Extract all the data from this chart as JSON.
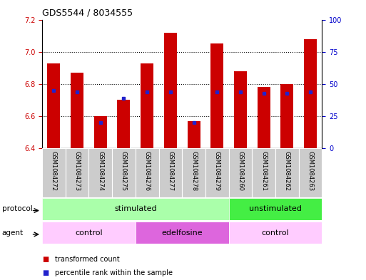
{
  "title": "GDS5544 / 8034555",
  "samples": [
    "GSM1084272",
    "GSM1084273",
    "GSM1084274",
    "GSM1084275",
    "GSM1084276",
    "GSM1084277",
    "GSM1084278",
    "GSM1084279",
    "GSM1084260",
    "GSM1084261",
    "GSM1084262",
    "GSM1084263"
  ],
  "transformed_count": [
    6.93,
    6.87,
    6.6,
    6.7,
    6.93,
    7.12,
    6.57,
    7.05,
    6.88,
    6.78,
    6.8,
    7.08
  ],
  "percentile_rank": [
    45,
    44,
    20,
    39,
    44,
    44,
    20,
    44,
    44,
    43,
    43,
    44
  ],
  "ymin": 6.4,
  "ymax": 7.2,
  "y_ticks_left": [
    6.4,
    6.6,
    6.8,
    7.0,
    7.2
  ],
  "y_ticks_right": [
    0,
    25,
    50,
    75,
    100
  ],
  "bar_color": "#cc0000",
  "dot_color": "#2222cc",
  "protocol_labels": [
    {
      "text": "stimulated",
      "start": 0,
      "end": 8,
      "color": "#aaffaa"
    },
    {
      "text": "unstimulated",
      "start": 8,
      "end": 12,
      "color": "#44ee44"
    }
  ],
  "agent_labels": [
    {
      "text": "control",
      "start": 0,
      "end": 4,
      "color": "#ffccff"
    },
    {
      "text": "edelfosine",
      "start": 4,
      "end": 8,
      "color": "#dd66dd"
    },
    {
      "text": "control",
      "start": 8,
      "end": 12,
      "color": "#ffccff"
    }
  ],
  "legend_items": [
    {
      "color": "#cc0000",
      "label": "transformed count"
    },
    {
      "color": "#2222cc",
      "label": "percentile rank within the sample"
    }
  ],
  "ytick_color_left": "#cc0000",
  "ytick_color_right": "#0000cc",
  "sample_bg_color": "#cccccc",
  "sample_bg_edge": "#ffffff"
}
